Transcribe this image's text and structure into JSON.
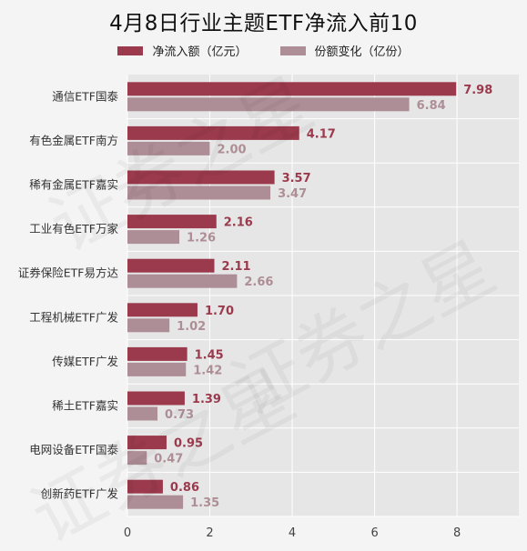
{
  "title": "4月8日行业主题ETF净流入前10",
  "legend": {
    "series1": "净流入额（亿元）",
    "series2": "份额变化（亿份）"
  },
  "colors": {
    "series1": "#9b3a4c",
    "series2": "#ae8e96",
    "plot_bg": "#e6e6e6",
    "page_bg": "#f4f4f4",
    "grid": "#ffffff"
  },
  "watermark_text": "证券之星",
  "chart_data": {
    "type": "bar",
    "orientation": "horizontal",
    "title": "4月8日行业主题ETF净流入前10",
    "categories": [
      "通信ETF国泰",
      "有色金属ETF南方",
      "稀有金属ETF嘉实",
      "工业有色ETF万家",
      "证券保险ETF易方达",
      "工程机械ETF广发",
      "传媒ETF广发",
      "稀土ETF嘉实",
      "电网设备ETF国泰",
      "创新药ETF广发"
    ],
    "series": [
      {
        "name": "净流入额（亿元）",
        "values": [
          7.98,
          4.17,
          3.57,
          2.16,
          2.11,
          1.7,
          1.45,
          1.39,
          0.95,
          0.86
        ]
      },
      {
        "name": "份额变化（亿份）",
        "values": [
          6.84,
          2.0,
          3.47,
          1.26,
          2.66,
          1.02,
          1.42,
          0.73,
          0.47,
          1.35
        ]
      }
    ],
    "value_labels": [
      [
        "7.98",
        "4.17",
        "3.57",
        "2.16",
        "2.11",
        "1.70",
        "1.45",
        "1.39",
        "0.95",
        "0.86"
      ],
      [
        "6.84",
        "2.00",
        "3.47",
        "1.26",
        "2.66",
        "1.02",
        "1.42",
        "0.73",
        "0.47",
        "1.35"
      ]
    ],
    "xticks": [
      "0",
      "2",
      "4",
      "6",
      "8"
    ],
    "xlim": [
      0,
      9.5
    ],
    "grid": true,
    "legend_position": "top"
  }
}
